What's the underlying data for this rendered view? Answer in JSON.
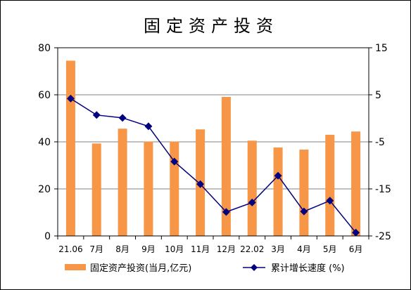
{
  "chart_data": {
    "type": "bar+line",
    "title": "固定资产投资",
    "categories": [
      "21.06",
      "7月",
      "8月",
      "9月",
      "10月",
      "11月",
      "12月",
      "22.02",
      "3月",
      "4月",
      "5月",
      "6月"
    ],
    "series": [
      {
        "name": "固定资产投资(当月,亿元)",
        "type": "bar",
        "axis": "left",
        "color": "#F79646",
        "values": [
          74.5,
          39.3,
          45.6,
          40.1,
          40.1,
          45.3,
          59.1,
          40.5,
          37.6,
          36.7,
          43.0,
          44.4
        ]
      },
      {
        "name": "累计增长速度 (%)",
        "type": "line",
        "axis": "right",
        "color": "#000080",
        "values": [
          4.2,
          0.7,
          0.1,
          -1.7,
          -9.2,
          -14.0,
          -19.9,
          -17.9,
          -12.2,
          -19.8,
          -17.5,
          -24.3
        ]
      }
    ],
    "y_left": {
      "min": 0,
      "max": 80,
      "ticks": [
        0,
        20,
        40,
        60,
        80
      ]
    },
    "y_right": {
      "min": -25,
      "max": 15,
      "ticks": [
        -25,
        -15,
        -5,
        5,
        15
      ]
    },
    "grid": true,
    "legend": "bottom"
  }
}
